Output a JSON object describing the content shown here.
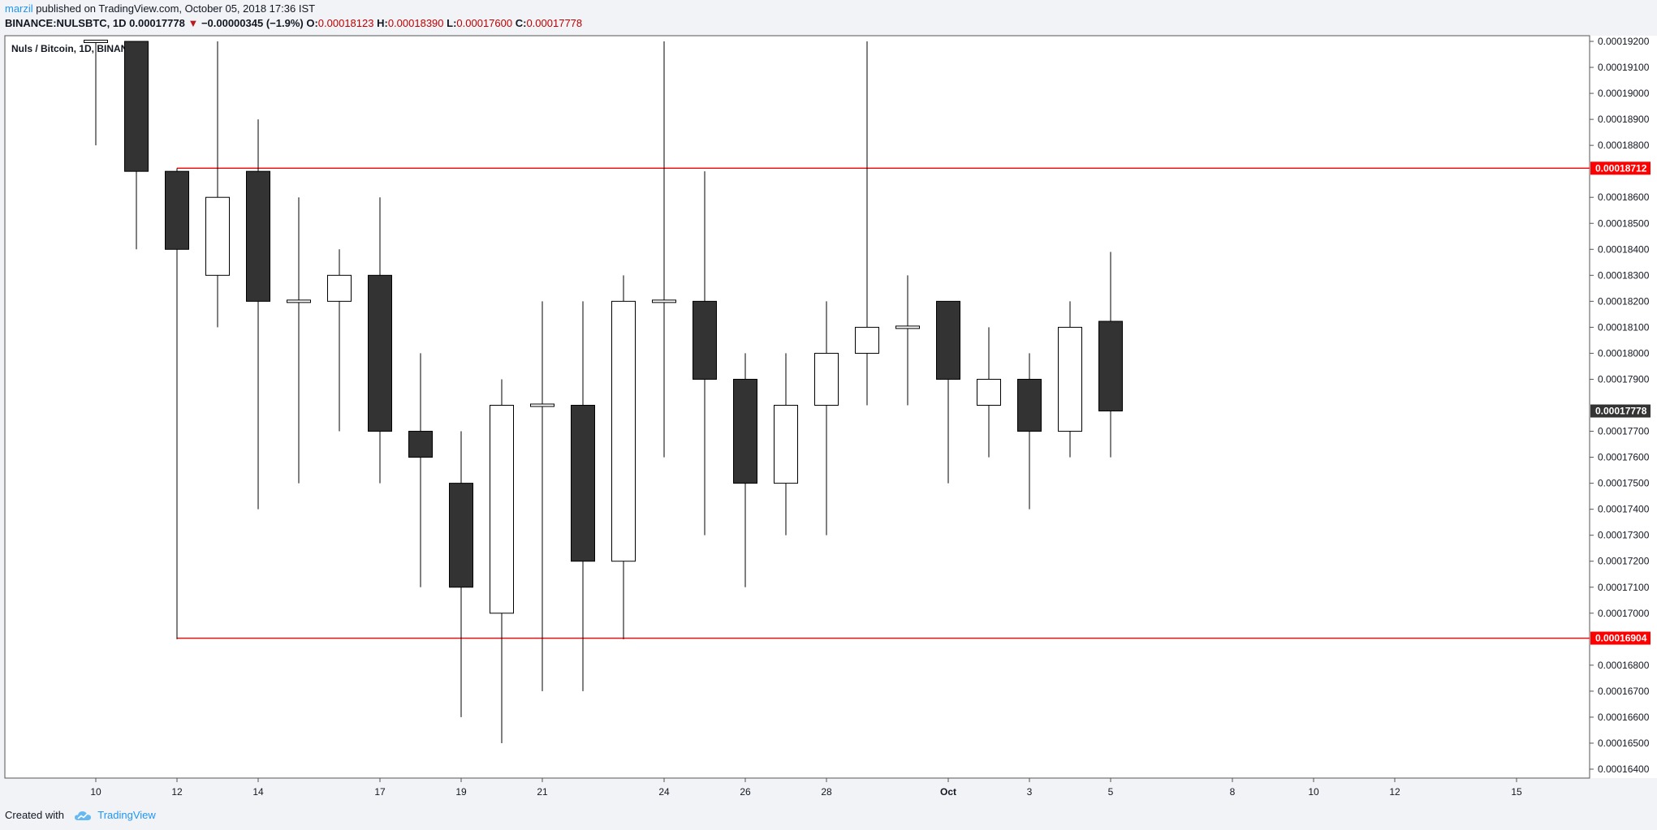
{
  "header": {
    "author": "marzil",
    "published_text": "published on TradingView.com, October 05, 2018 17:36 IST",
    "symbol": "BINANCE:NULSBTC, 1D",
    "last": "0.00017778",
    "change_arrow": "▼",
    "change": "−0.00000345 (−1.9%)",
    "o_label": "O:",
    "o_value": "0.00018123",
    "h_label": "H:",
    "h_value": "0.00018390",
    "l_label": "L:",
    "l_value": "0.00017600",
    "c_label": "C:",
    "c_value": "0.00017778"
  },
  "footer": {
    "created_with": "Created with",
    "brand": "TradingView",
    "logo_icon": "tradingview-cloud-icon"
  },
  "colors": {
    "bear_fill": "#333333",
    "bull_fill": "#ffffff",
    "candle_stroke": "#000000",
    "level_line": "#ff0000",
    "last_price_label": "#333333"
  },
  "chart_data": {
    "type": "candlestick",
    "title": "Nuls / Bitcoin, 1D, BINANCE",
    "ylim": [
      0.000164,
      0.000192
    ],
    "y_ticks": [
      "0.00019200",
      "0.00019100",
      "0.00019000",
      "0.00018900",
      "0.00018800",
      "0.00018600",
      "0.00018500",
      "0.00018400",
      "0.00018300",
      "0.00018200",
      "0.00018100",
      "0.00018000",
      "0.00017900",
      "0.00017700",
      "0.00017600",
      "0.00017500",
      "0.00017400",
      "0.00017300",
      "0.00017200",
      "0.00017100",
      "0.00017000",
      "0.00016800",
      "0.00016700",
      "0.00016600",
      "0.00016500",
      "0.00016400"
    ],
    "x_ticks": [
      {
        "label": "10",
        "day": 0
      },
      {
        "label": "12",
        "day": 2
      },
      {
        "label": "14",
        "day": 4
      },
      {
        "label": "17",
        "day": 7
      },
      {
        "label": "19",
        "day": 9
      },
      {
        "label": "21",
        "day": 11
      },
      {
        "label": "24",
        "day": 14
      },
      {
        "label": "26",
        "day": 16
      },
      {
        "label": "28",
        "day": 18
      },
      {
        "label": "Oct",
        "day": 21
      },
      {
        "label": "3",
        "day": 23
      },
      {
        "label": "5",
        "day": 25
      },
      {
        "label": "8",
        "day": 28
      },
      {
        "label": "10",
        "day": 30
      },
      {
        "label": "12",
        "day": 32
      },
      {
        "label": "15",
        "day": 35
      }
    ],
    "candles": [
      {
        "date": "2018-09-10",
        "day": 0,
        "o": 0.000192,
        "h": 0.000192,
        "l": 0.000188,
        "c": 0.000192
      },
      {
        "date": "2018-09-11",
        "day": 1,
        "o": 0.000192,
        "h": 0.000192,
        "l": 0.000184,
        "c": 0.000187
      },
      {
        "date": "2018-09-12",
        "day": 2,
        "o": 0.000187,
        "h": 0.000187,
        "l": 0.000169,
        "c": 0.000184
      },
      {
        "date": "2018-09-13",
        "day": 3,
        "o": 0.000183,
        "h": 0.000192,
        "l": 0.000181,
        "c": 0.000186
      },
      {
        "date": "2018-09-14",
        "day": 4,
        "o": 0.000187,
        "h": 0.000189,
        "l": 0.000174,
        "c": 0.000182
      },
      {
        "date": "2018-09-15",
        "day": 5,
        "o": 0.000182,
        "h": 0.000186,
        "l": 0.000175,
        "c": 0.000182
      },
      {
        "date": "2018-09-16",
        "day": 6,
        "o": 0.000182,
        "h": 0.000184,
        "l": 0.000177,
        "c": 0.000183
      },
      {
        "date": "2018-09-17",
        "day": 7,
        "o": 0.000183,
        "h": 0.000186,
        "l": 0.000175,
        "c": 0.000177
      },
      {
        "date": "2018-09-18",
        "day": 8,
        "o": 0.000177,
        "h": 0.00018,
        "l": 0.000171,
        "c": 0.000176
      },
      {
        "date": "2018-09-19",
        "day": 9,
        "o": 0.000175,
        "h": 0.000177,
        "l": 0.000166,
        "c": 0.000171
      },
      {
        "date": "2018-09-20",
        "day": 10,
        "o": 0.00017,
        "h": 0.000179,
        "l": 0.000165,
        "c": 0.000178
      },
      {
        "date": "2018-09-21",
        "day": 11,
        "o": 0.000178,
        "h": 0.000182,
        "l": 0.000167,
        "c": 0.000178
      },
      {
        "date": "2018-09-22",
        "day": 12,
        "o": 0.000178,
        "h": 0.000182,
        "l": 0.000167,
        "c": 0.000172
      },
      {
        "date": "2018-09-23",
        "day": 13,
        "o": 0.000172,
        "h": 0.000183,
        "l": 0.000169,
        "c": 0.000182
      },
      {
        "date": "2018-09-24",
        "day": 14,
        "o": 0.000182,
        "h": 0.000192,
        "l": 0.000176,
        "c": 0.000182
      },
      {
        "date": "2018-09-25",
        "day": 15,
        "o": 0.000182,
        "h": 0.000187,
        "l": 0.000173,
        "c": 0.000179
      },
      {
        "date": "2018-09-26",
        "day": 16,
        "o": 0.000179,
        "h": 0.00018,
        "l": 0.000171,
        "c": 0.000175
      },
      {
        "date": "2018-09-27",
        "day": 17,
        "o": 0.000175,
        "h": 0.00018,
        "l": 0.000173,
        "c": 0.000178
      },
      {
        "date": "2018-09-28",
        "day": 18,
        "o": 0.000178,
        "h": 0.000182,
        "l": 0.000173,
        "c": 0.00018
      },
      {
        "date": "2018-09-29",
        "day": 19,
        "o": 0.00018,
        "h": 0.000192,
        "l": 0.000178,
        "c": 0.000181
      },
      {
        "date": "2018-09-30",
        "day": 20,
        "o": 0.000181,
        "h": 0.000183,
        "l": 0.000178,
        "c": 0.000181
      },
      {
        "date": "2018-10-01",
        "day": 21,
        "o": 0.000182,
        "h": 0.000182,
        "l": 0.000175,
        "c": 0.000179
      },
      {
        "date": "2018-10-02",
        "day": 22,
        "o": 0.000178,
        "h": 0.000181,
        "l": 0.000176,
        "c": 0.000179
      },
      {
        "date": "2018-10-03",
        "day": 23,
        "o": 0.000179,
        "h": 0.00018,
        "l": 0.000174,
        "c": 0.000177
      },
      {
        "date": "2018-10-04",
        "day": 24,
        "o": 0.000177,
        "h": 0.000182,
        "l": 0.000176,
        "c": 0.000181
      },
      {
        "date": "2018-10-05",
        "day": 25,
        "o": 0.00018123,
        "h": 0.0001839,
        "l": 0.000176,
        "c": 0.00017778
      }
    ],
    "horizontal_levels": [
      {
        "value": 0.00018712,
        "label": "0.00018712",
        "start_day": 2
      },
      {
        "value": 0.00016904,
        "label": "0.00016904",
        "start_day": 2
      }
    ],
    "vertical_line": {
      "day": 2,
      "from": 0.00016904,
      "to": 0.00018712
    },
    "last_price": {
      "value": 0.00017778,
      "label": "0.00017778"
    },
    "grid": false
  }
}
